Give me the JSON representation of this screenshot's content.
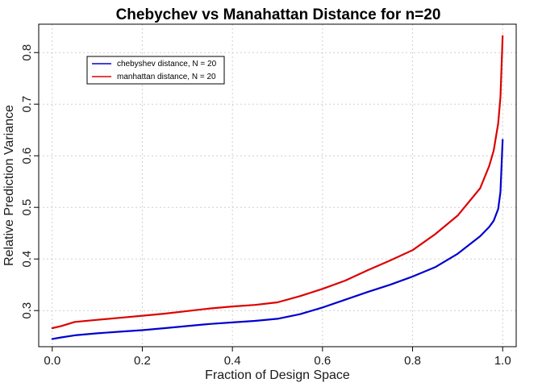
{
  "chart_data": {
    "type": "line",
    "title": "Chebychev vs Manahattan Distance for n=20",
    "xlabel": "Fraction of Design Space",
    "ylabel": "Relative Prediction Variance",
    "xlim": [
      -0.03,
      1.03
    ],
    "ylim": [
      0.23,
      0.855
    ],
    "xticks": [
      0.0,
      0.2,
      0.4,
      0.6,
      0.8,
      1.0
    ],
    "xtick_labels": [
      "0.0",
      "0.2",
      "0.4",
      "0.6",
      "0.8",
      "1.0"
    ],
    "yticks": [
      0.3,
      0.4,
      0.5,
      0.6,
      0.7,
      0.8
    ],
    "ytick_labels": [
      "0.3",
      "0.4",
      "0.5",
      "0.6",
      "0.7",
      "0.8"
    ],
    "grid": true,
    "legend_position": "top-left",
    "series": [
      {
        "name": "chebyshev distance, N = 20",
        "color": "#0000cd",
        "x": [
          0.0,
          0.02,
          0.05,
          0.1,
          0.15,
          0.2,
          0.25,
          0.3,
          0.35,
          0.4,
          0.45,
          0.5,
          0.55,
          0.6,
          0.65,
          0.7,
          0.75,
          0.8,
          0.85,
          0.9,
          0.95,
          0.97,
          0.98,
          0.99,
          0.995,
          1.0
        ],
        "y": [
          0.245,
          0.248,
          0.252,
          0.256,
          0.259,
          0.262,
          0.266,
          0.27,
          0.274,
          0.277,
          0.28,
          0.284,
          0.293,
          0.306,
          0.321,
          0.336,
          0.35,
          0.366,
          0.384,
          0.41,
          0.444,
          0.462,
          0.474,
          0.497,
          0.53,
          0.631
        ]
      },
      {
        "name": "manhattan distance, N = 20",
        "color": "#dd0000",
        "x": [
          0.0,
          0.02,
          0.05,
          0.1,
          0.15,
          0.2,
          0.25,
          0.3,
          0.35,
          0.4,
          0.45,
          0.5,
          0.55,
          0.6,
          0.65,
          0.7,
          0.75,
          0.8,
          0.85,
          0.9,
          0.95,
          0.97,
          0.98,
          0.99,
          0.995,
          1.0
        ],
        "y": [
          0.266,
          0.27,
          0.278,
          0.282,
          0.286,
          0.29,
          0.294,
          0.299,
          0.304,
          0.308,
          0.311,
          0.316,
          0.328,
          0.342,
          0.358,
          0.378,
          0.397,
          0.417,
          0.448,
          0.484,
          0.537,
          0.58,
          0.61,
          0.663,
          0.714,
          0.832
        ]
      }
    ]
  }
}
